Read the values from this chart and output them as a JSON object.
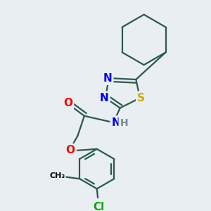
{
  "background_color": "#e8eef2",
  "atom_colors": {
    "N": "#0000ee",
    "S": "#ccaa00",
    "O": "#ff0000",
    "Cl": "#00aa00",
    "C": "#000000",
    "H": "#778888"
  },
  "bond_color": "#2a5a4a",
  "bond_width": 1.6,
  "font_size_atom": 11,
  "font_size_small": 9
}
